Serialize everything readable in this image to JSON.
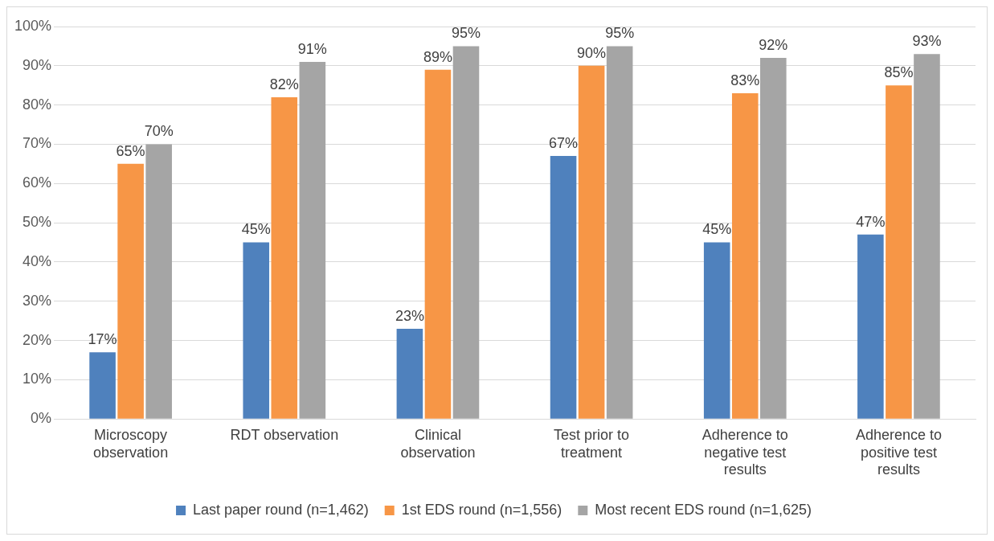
{
  "chart_data": {
    "type": "bar",
    "categories": [
      "Microscopy observation",
      "RDT observation",
      "Clinical observation",
      "Test prior to treatment",
      "Adherence to negative test results",
      "Adherence to positive test results"
    ],
    "series": [
      {
        "name": "Last paper round (n=1,462)",
        "color": "#4f81bd",
        "values": [
          17,
          45,
          23,
          67,
          45,
          47
        ],
        "value_labels": [
          "17%",
          "45%",
          "23%",
          "67%",
          "45%",
          "47%"
        ]
      },
      {
        "name": "1st EDS round (n=1,556)",
        "color": "#f79646",
        "values": [
          65,
          82,
          89,
          90,
          83,
          85
        ],
        "value_labels": [
          "65%",
          "82%",
          "89%",
          "90%",
          "83%",
          "85%"
        ]
      },
      {
        "name": "Most recent EDS round (n=1,625)",
        "color": "#a5a5a5",
        "values": [
          70,
          91,
          95,
          95,
          92,
          93
        ],
        "value_labels": [
          "70%",
          "91%",
          "95%",
          "95%",
          "92%",
          "93%"
        ]
      }
    ],
    "ylim": [
      0,
      100
    ],
    "yticks": [
      {
        "value": 0,
        "label": "0%"
      },
      {
        "value": 10,
        "label": "10%"
      },
      {
        "value": 20,
        "label": "20%"
      },
      {
        "value": 30,
        "label": "30%"
      },
      {
        "value": 40,
        "label": "40%"
      },
      {
        "value": 50,
        "label": "50%"
      },
      {
        "value": 60,
        "label": "60%"
      },
      {
        "value": 70,
        "label": "70%"
      },
      {
        "value": 80,
        "label": "80%"
      },
      {
        "value": 90,
        "label": "90%"
      },
      {
        "value": 100,
        "label": "100%"
      }
    ],
    "grid": "y",
    "legend": "bottom"
  }
}
